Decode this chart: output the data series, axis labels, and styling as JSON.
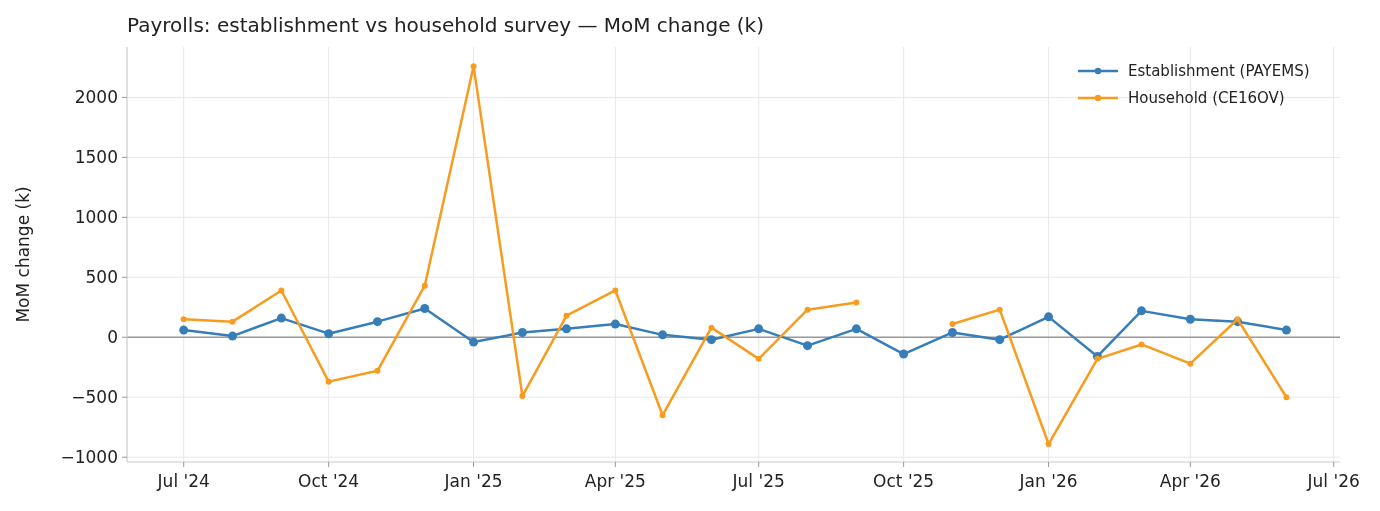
{
  "chart_data": {
    "type": "line",
    "title": "Payrolls: establishment vs household survey — MoM change (k)",
    "ylabel": "MoM change (k)",
    "x": [
      "2024-07",
      "2024-08",
      "2024-09",
      "2024-10",
      "2024-11",
      "2024-12",
      "2025-01",
      "2025-02",
      "2025-03",
      "2025-04",
      "2025-05",
      "2025-06",
      "2025-07",
      "2025-08",
      "2025-09",
      "2025-10",
      "2025-11",
      "2025-12",
      "2026-01",
      "2026-02",
      "2026-03",
      "2026-04",
      "2026-05",
      "2026-06"
    ],
    "series": [
      {
        "name": "Establishment (PAYEMS)",
        "color": "#377eb8",
        "values": [
          60,
          10,
          160,
          30,
          130,
          240,
          -40,
          40,
          70,
          110,
          20,
          -20,
          70,
          -70,
          70,
          -140,
          40,
          -20,
          170,
          -160,
          220,
          150,
          130,
          60
        ]
      },
      {
        "name": "Household (CE16OV)",
        "color": "#f89c20",
        "values": [
          150,
          130,
          390,
          -370,
          -280,
          430,
          2260,
          -490,
          180,
          390,
          -650,
          80,
          -180,
          230,
          290,
          null,
          110,
          230,
          -890,
          -180,
          -60,
          -220,
          150,
          -500
        ]
      }
    ],
    "xlim": [
      "2024-05-26",
      "2026-07-05"
    ],
    "xticks": [
      {
        "value": "2024-07",
        "label": "Jul '24"
      },
      {
        "value": "2024-10",
        "label": "Oct '24"
      },
      {
        "value": "2025-01",
        "label": "Jan '25"
      },
      {
        "value": "2025-04",
        "label": "Apr '25"
      },
      {
        "value": "2025-07",
        "label": "Jul '25"
      },
      {
        "value": "2025-10",
        "label": "Oct '25"
      },
      {
        "value": "2026-01",
        "label": "Jan '26"
      },
      {
        "value": "2026-04",
        "label": "Apr '26"
      },
      {
        "value": "2026-07",
        "label": "Jul '26"
      }
    ],
    "ylim": [
      -1040,
      2420
    ],
    "yticks": [
      -1000,
      -500,
      0,
      500,
      1000,
      1500,
      2000
    ],
    "ref_lines": [
      {
        "axis": "y",
        "value": 0,
        "color": "#999999"
      }
    ],
    "grid": true,
    "legend": "top right",
    "marker": "circle",
    "line_style": "solid"
  }
}
